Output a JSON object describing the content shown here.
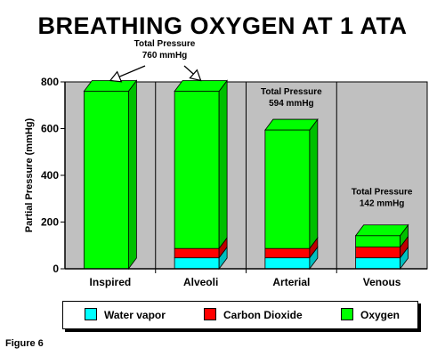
{
  "chart_data": {
    "type": "bar",
    "stacked": true,
    "style": "3d",
    "title": "BREATHING OXYGEN AT 1 ATA",
    "ylabel": "Partial Pressure (mmHg)",
    "xlabel": "",
    "ylim": [
      0,
      800
    ],
    "yticks": [
      0,
      200,
      400,
      600,
      800
    ],
    "grid": false,
    "plot_background": "#c0c0c0",
    "categories": [
      "Inspired",
      "Alveoli",
      "Arterial",
      "Venous"
    ],
    "series": [
      {
        "name": "Water vapor",
        "color": "#00ffff",
        "values": [
          0,
          47,
          47,
          47
        ]
      },
      {
        "name": "Carbon Dioxide",
        "color": "#ff0000",
        "values": [
          0,
          40,
          40,
          46
        ]
      },
      {
        "name": "Oxygen",
        "color": "#00ff00",
        "values": [
          760,
          673,
          507,
          49
        ]
      }
    ],
    "legend_position": "bottom",
    "annotations": [
      {
        "label_lines": [
          "Total Pressure",
          "760 mmHg"
        ],
        "targets": [
          "Inspired",
          "Alveoli"
        ]
      },
      {
        "label_lines": [
          "Total Pressure",
          "594 mmHg"
        ],
        "category": "Arterial"
      },
      {
        "label_lines": [
          "Total Pressure",
          "142 mmHg"
        ],
        "category": "Venous"
      }
    ],
    "caption": "Figure 6"
  }
}
